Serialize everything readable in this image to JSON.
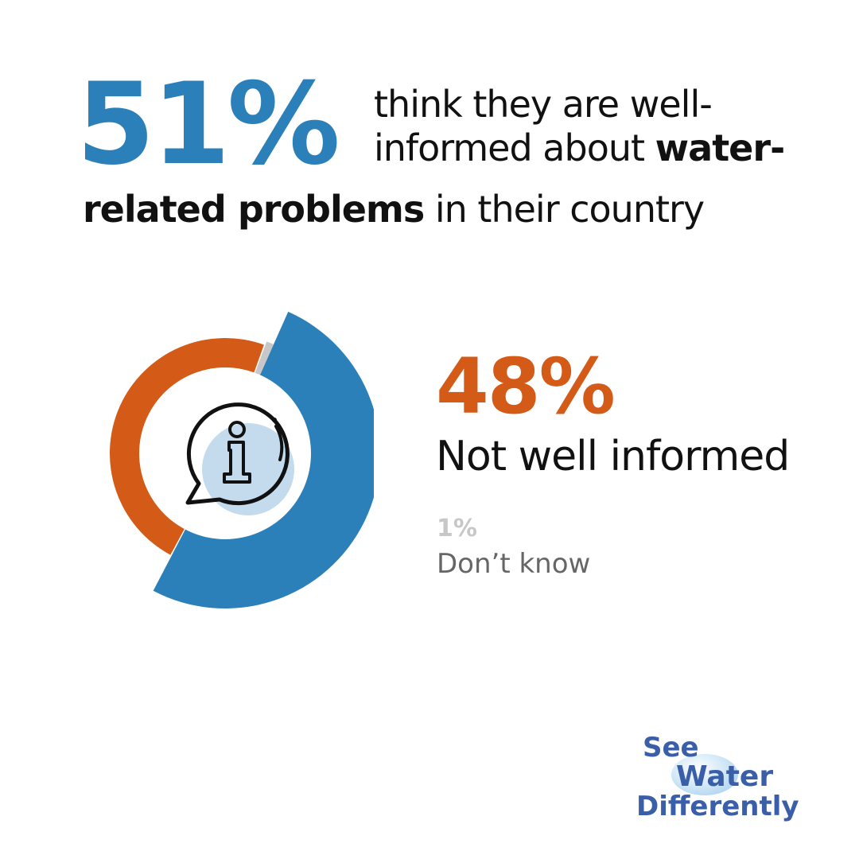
{
  "colors": {
    "informed": "#2c80b9",
    "not_informed": "#d45a17",
    "dont_know": "#c7c7c7",
    "icon_fill": "#c3dbec",
    "logo": "#3a5ea8"
  },
  "headline": {
    "pct": "51%",
    "line1": "think they are well-",
    "line2_a": "informed about ",
    "line2_b": "water-",
    "line3_a": "related problems",
    "line3_b": " in their country"
  },
  "stat_main": {
    "pct": "48%",
    "label": "Not well informed"
  },
  "stat_minor": {
    "pct": "1%",
    "label": "Don’t know"
  },
  "logo": {
    "line1": "See",
    "line2": "Water",
    "line3": "Differently"
  },
  "icon": "info-speech-bubble-icon",
  "chart_data": {
    "type": "pie",
    "title": "",
    "slices": [
      {
        "label": "well-informed",
        "value": 51
      },
      {
        "label": "Not well informed",
        "value": 48
      },
      {
        "label": "Don’t know",
        "value": 1
      }
    ]
  }
}
